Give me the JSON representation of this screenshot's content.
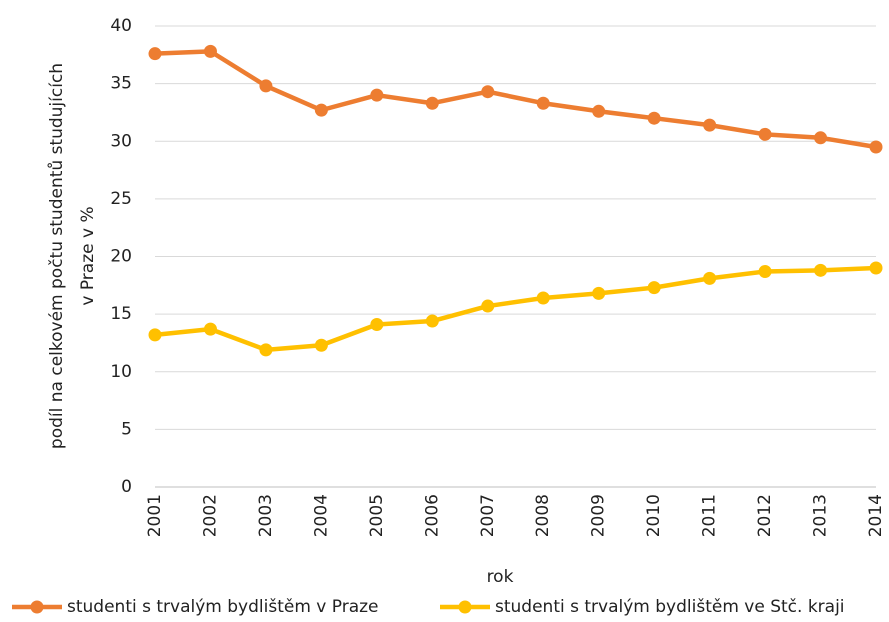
{
  "chart_data": {
    "type": "line",
    "xlabel": "rok",
    "ylabel": [
      "podíl na celkovém počtu studentů studujících",
      "v Praze v %"
    ],
    "categories": [
      "2001",
      "2002",
      "2003",
      "2004",
      "2005",
      "2006",
      "2007",
      "2008",
      "2009",
      "2010",
      "2011",
      "2012",
      "2013",
      "2014"
    ],
    "series": [
      {
        "name": "studenti s trvalým bydlištěm v Praze",
        "color": "#ed7d31",
        "values": [
          37.6,
          37.8,
          34.8,
          32.7,
          34.0,
          33.3,
          34.3,
          33.3,
          32.6,
          32.0,
          31.4,
          30.6,
          30.3,
          29.5
        ]
      },
      {
        "name": "studenti s trvalým bydlištěm ve Stč. kraji",
        "color": "#ffc000",
        "values": [
          13.2,
          13.7,
          11.9,
          12.3,
          14.1,
          14.4,
          15.7,
          16.4,
          16.8,
          17.3,
          18.1,
          18.7,
          18.8,
          19.0
        ]
      }
    ],
    "ylim": [
      0,
      40
    ],
    "yticks": [
      0,
      5,
      10,
      15,
      20,
      25,
      30,
      35,
      40
    ],
    "grid": true,
    "legend": "bottom"
  }
}
